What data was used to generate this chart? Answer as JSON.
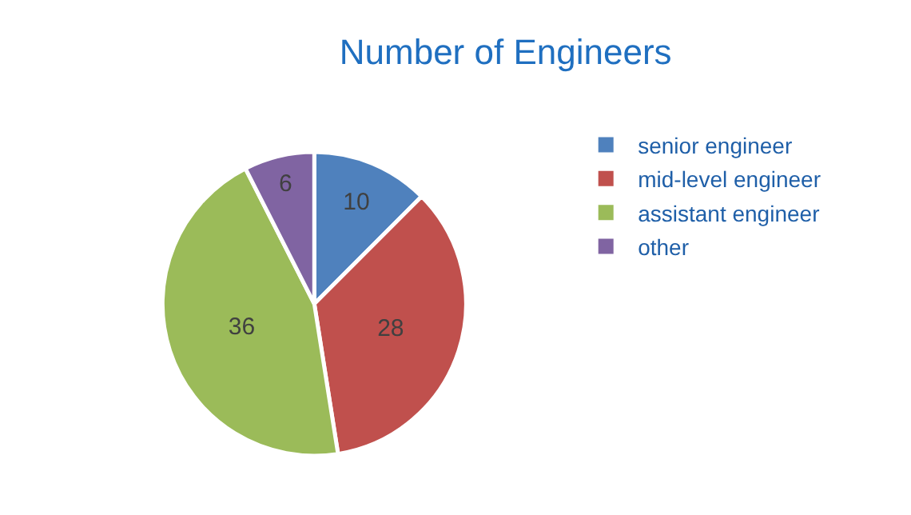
{
  "chart_data": {
    "type": "pie",
    "title": "Number of Engineers",
    "categories": [
      "senior engineer",
      "mid-level engineer",
      "assistant engineer",
      "other"
    ],
    "values": [
      10,
      28,
      36,
      6
    ],
    "colors": [
      "#4f81bd",
      "#c0504d",
      "#9bbb59",
      "#8064a2"
    ],
    "data_labels": true,
    "legend": "right"
  }
}
